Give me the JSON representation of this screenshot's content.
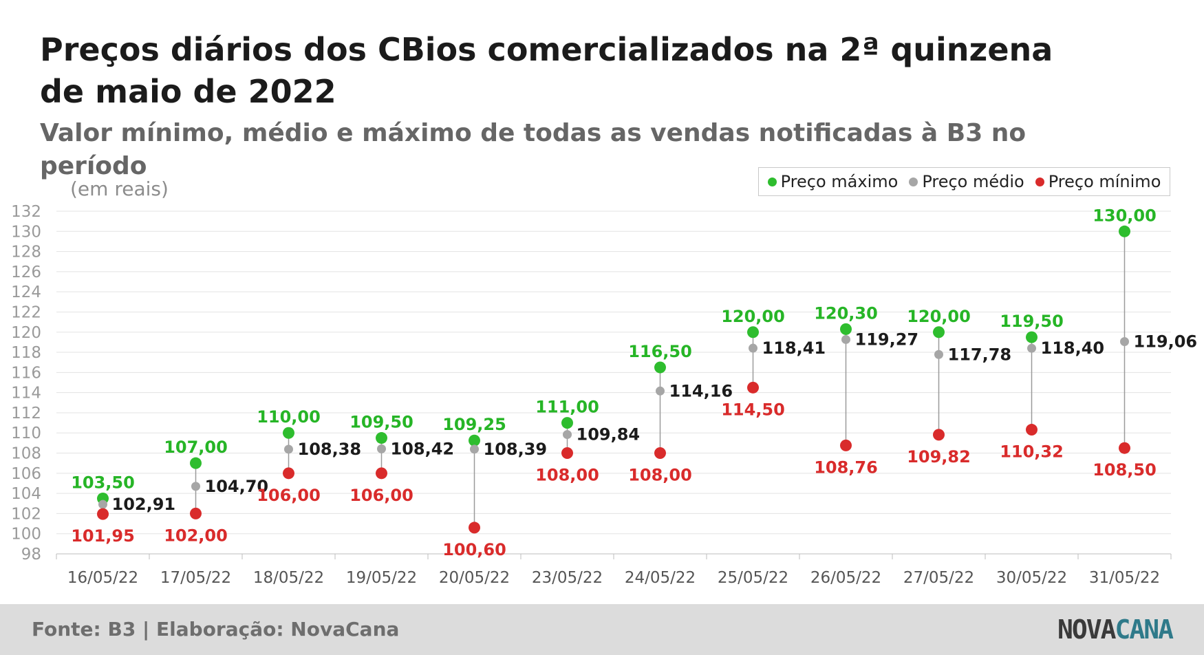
{
  "title": "Preços diários dos CBios comercializados na 2ª quinzena de maio de 2022",
  "subtitle": "Valor mínimo, médio e máximo de todas as vendas notificadas à B3 no período",
  "unit_label": "(em reais)",
  "legend": [
    {
      "label": "Preço máximo",
      "color": "#2ebd2e"
    },
    {
      "label": "Preço médio",
      "color": "#a6a6a6"
    },
    {
      "label": "Preço mínimo",
      "color": "#d92b2b"
    }
  ],
  "footer": {
    "source": "Fonte: B3 | Elaboração: NovaCana",
    "brand_part1": "NOVA",
    "brand_part2": "CANA"
  },
  "chart_data": {
    "type": "scatter",
    "categories": [
      "16/05/22",
      "17/05/22",
      "18/05/22",
      "19/05/22",
      "20/05/22",
      "23/05/22",
      "24/05/22",
      "25/05/22",
      "26/05/22",
      "27/05/22",
      "30/05/22",
      "31/05/22"
    ],
    "series": [
      {
        "name": "Preço máximo",
        "color": "#2ebd2e",
        "values": [
          103.5,
          107.0,
          110.0,
          109.5,
          109.25,
          111.0,
          116.5,
          120.0,
          120.3,
          120.0,
          119.5,
          130.0
        ],
        "labels": [
          "103,50",
          "107,00",
          "110,00",
          "109,50",
          "109,25",
          "111,00",
          "116,50",
          "120,00",
          "120,30",
          "120,00",
          "119,50",
          "130,00"
        ]
      },
      {
        "name": "Preço médio",
        "color": "#a6a6a6",
        "values": [
          102.91,
          104.7,
          108.38,
          108.42,
          108.39,
          109.84,
          114.16,
          118.41,
          119.27,
          117.78,
          118.4,
          119.06
        ],
        "labels": [
          "102,91",
          "104,70",
          "108,38",
          "108,42",
          "108,39",
          "109,84",
          "114,16",
          "118,41",
          "119,27",
          "117,78",
          "118,40",
          "119,06"
        ]
      },
      {
        "name": "Preço mínimo",
        "color": "#d92b2b",
        "values": [
          101.95,
          102.0,
          106.0,
          106.0,
          100.6,
          108.0,
          108.0,
          114.5,
          108.76,
          109.82,
          110.32,
          108.5
        ],
        "labels": [
          "101,95",
          "102,00",
          "106,00",
          "106,00",
          "100,60",
          "108,00",
          "108,00",
          "114,50",
          "108,76",
          "109,82",
          "110,32",
          "108,50"
        ]
      }
    ],
    "ylim": [
      98,
      132
    ],
    "yticks": [
      98,
      100,
      102,
      104,
      106,
      108,
      110,
      112,
      114,
      116,
      118,
      120,
      122,
      124,
      126,
      128,
      130,
      132
    ],
    "grid": true,
    "legend_position": "top-right"
  }
}
